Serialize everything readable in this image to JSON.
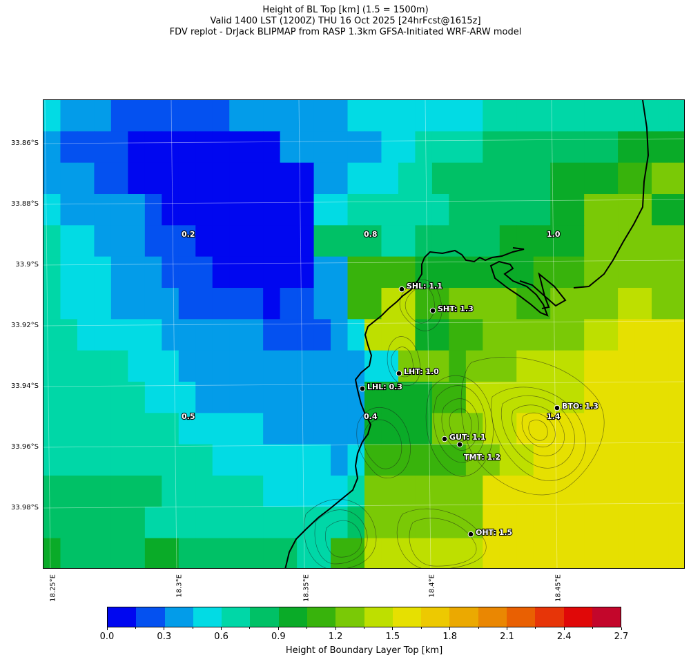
{
  "title": {
    "line1": "Height of BL Top [km] (1.5 = 1500m)",
    "line2": "Valid 1400 LST (1200Z) THU 16 Oct 2025 [24hrFcst@1615z]",
    "line3": "FDV replot - DrJack BLIPMAP from RASP 1.3km GFSA-Initiated WRF-ARW model"
  },
  "lat_labels": [
    "33.86°S",
    "33.88°S",
    "33.9°S",
    "33.92°S",
    "33.94°S",
    "33.96°S",
    "33.98°S"
  ],
  "lon_labels": [
    "18.25°E",
    "18.3°E",
    "18.35°E",
    "18.4°E",
    "18.45°E"
  ],
  "grid_values_km": [
    [
      0.5,
      0.4,
      0.4,
      0.4,
      0.2,
      0.2,
      0.2,
      0.2,
      0.2,
      0.2,
      0.2,
      0.3,
      0.3,
      0.3,
      0.3,
      0.3,
      0.3,
      0.3,
      0.5,
      0.5,
      0.5,
      0.5,
      0.5,
      0.5,
      0.5,
      0.5,
      0.6,
      0.6,
      0.6,
      0.6,
      0.6,
      0.6,
      0.6,
      0.6,
      0.6,
      0.6,
      0.6,
      0.6
    ],
    [
      0.3,
      0.2,
      0.2,
      0.2,
      0.2,
      0.1,
      0.1,
      0.1,
      0.1,
      0.1,
      0.1,
      0.1,
      0.1,
      0.1,
      0.3,
      0.3,
      0.4,
      0.4,
      0.4,
      0.4,
      0.5,
      0.5,
      0.6,
      0.6,
      0.6,
      0.6,
      0.8,
      0.8,
      0.8,
      0.8,
      0.8,
      0.8,
      0.8,
      0.8,
      0.9,
      0.9,
      1.0,
      1.0
    ],
    [
      0.4,
      0.4,
      0.3,
      0.2,
      0.2,
      0.1,
      0.1,
      0.1,
      0.1,
      0.1,
      0.1,
      0.1,
      0.1,
      0.1,
      0.1,
      0.1,
      0.3,
      0.3,
      0.5,
      0.5,
      0.5,
      0.6,
      0.6,
      0.8,
      0.8,
      0.8,
      0.8,
      0.8,
      0.8,
      0.8,
      0.9,
      0.9,
      0.9,
      0.9,
      1.1,
      1.1,
      1.2,
      1.2
    ],
    [
      0.5,
      0.4,
      0.4,
      0.3,
      0.3,
      0.3,
      0.2,
      0.1,
      0.1,
      0.1,
      0.1,
      0.1,
      0.1,
      0.1,
      0.1,
      0.1,
      0.5,
      0.5,
      0.6,
      0.6,
      0.6,
      0.7,
      0.7,
      0.7,
      0.8,
      0.8,
      0.8,
      0.8,
      0.8,
      0.8,
      1.0,
      1.0,
      1.3,
      1.3,
      1.2,
      1.2,
      1.0,
      1.0
    ],
    [
      0.6,
      0.5,
      0.5,
      0.4,
      0.4,
      0.4,
      0.2,
      0.2,
      0.2,
      0.1,
      0.1,
      0.1,
      0.1,
      0.1,
      0.1,
      0.1,
      0.8,
      0.8,
      0.8,
      0.8,
      0.7,
      0.7,
      0.8,
      0.8,
      0.8,
      0.8,
      0.8,
      0.9,
      0.9,
      0.9,
      1.0,
      1.0,
      1.3,
      1.3,
      1.2,
      1.2,
      1.3,
      1.3
    ],
    [
      0.6,
      0.5,
      0.5,
      0.5,
      0.4,
      0.4,
      0.4,
      0.2,
      0.2,
      0.2,
      0.1,
      0.1,
      0.1,
      0.1,
      0.1,
      0.1,
      0.3,
      0.3,
      1.1,
      1.1,
      1.1,
      1.1,
      1.0,
      1.0,
      1.0,
      1.0,
      1.0,
      1.0,
      1.0,
      1.1,
      1.1,
      1.1,
      1.3,
      1.3,
      1.3,
      1.3,
      1.3,
      1.3
    ],
    [
      0.6,
      0.5,
      0.5,
      0.5,
      0.4,
      0.4,
      0.4,
      0.4,
      0.2,
      0.2,
      0.2,
      0.2,
      0.2,
      0.1,
      0.2,
      0.2,
      0.3,
      0.3,
      1.1,
      1.1,
      1.4,
      1.4,
      1.1,
      1.1,
      1.3,
      1.3,
      1.2,
      1.2,
      1.1,
      1.1,
      1.2,
      1.2,
      1.3,
      1.3,
      1.4,
      1.4,
      1.3,
      1.3
    ],
    [
      0.7,
      0.7,
      0.5,
      0.5,
      0.5,
      0.5,
      0.5,
      0.4,
      0.4,
      0.3,
      0.3,
      0.3,
      0.3,
      0.2,
      0.2,
      0.2,
      0.2,
      0.4,
      0.5,
      1.4,
      1.4,
      1.4,
      1.0,
      1.0,
      1.1,
      1.1,
      1.2,
      1.2,
      1.3,
      1.3,
      1.3,
      1.3,
      1.4,
      1.4,
      1.5,
      1.5,
      1.5,
      1.5
    ],
    [
      0.7,
      0.7,
      0.7,
      0.6,
      0.6,
      0.5,
      0.5,
      0.5,
      0.4,
      0.4,
      0.4,
      0.3,
      0.3,
      0.3,
      0.3,
      0.4,
      0.4,
      0.4,
      0.4,
      0.5,
      0.5,
      1.2,
      1.2,
      1.2,
      1.1,
      1.3,
      1.3,
      1.3,
      1.4,
      1.4,
      1.4,
      1.4,
      1.5,
      1.5,
      1.5,
      1.5,
      1.5,
      1.5
    ],
    [
      0.7,
      0.7,
      0.7,
      0.6,
      0.6,
      0.6,
      0.5,
      0.5,
      0.5,
      0.4,
      0.4,
      0.4,
      0.3,
      0.3,
      0.3,
      0.3,
      0.3,
      0.3,
      0.4,
      1.0,
      1.0,
      1.0,
      1.0,
      1.1,
      1.1,
      1.4,
      1.4,
      1.4,
      1.4,
      1.4,
      1.4,
      1.4,
      1.5,
      1.5,
      1.5,
      1.5,
      1.5,
      1.5
    ],
    [
      0.7,
      0.7,
      0.7,
      0.7,
      0.7,
      0.6,
      0.6,
      0.6,
      0.5,
      0.5,
      0.5,
      0.5,
      0.5,
      0.4,
      0.4,
      0.4,
      0.4,
      0.4,
      0.4,
      1.0,
      1.0,
      1.0,
      1.0,
      1.2,
      1.2,
      1.2,
      1.4,
      1.4,
      1.5,
      1.5,
      1.5,
      1.5,
      1.5,
      1.5,
      1.5,
      1.5,
      1.6,
      1.6
    ],
    [
      0.7,
      0.7,
      0.7,
      0.7,
      0.7,
      0.7,
      0.6,
      0.6,
      0.6,
      0.6,
      0.5,
      0.5,
      0.5,
      0.5,
      0.5,
      0.5,
      0.5,
      0.4,
      0.5,
      1.1,
      1.1,
      1.1,
      1.1,
      1.1,
      1.1,
      1.2,
      1.2,
      1.4,
      1.4,
      1.5,
      1.5,
      1.5,
      1.5,
      1.5,
      1.6,
      1.6,
      1.6,
      1.6
    ],
    [
      0.8,
      0.8,
      0.8,
      0.8,
      0.8,
      0.8,
      0.8,
      0.7,
      0.7,
      0.7,
      0.6,
      0.6,
      0.6,
      0.5,
      0.5,
      0.5,
      0.5,
      0.5,
      0.6,
      1.2,
      1.2,
      1.2,
      1.2,
      1.2,
      1.2,
      1.2,
      1.5,
      1.5,
      1.6,
      1.6,
      1.6,
      1.6,
      1.6,
      1.6,
      1.6,
      1.6,
      1.6,
      1.6
    ],
    [
      0.8,
      0.8,
      0.8,
      0.8,
      0.8,
      0.8,
      0.7,
      0.7,
      0.7,
      0.7,
      0.7,
      0.7,
      0.6,
      0.6,
      0.6,
      0.6,
      0.6,
      0.7,
      0.8,
      1.3,
      1.3,
      1.3,
      1.3,
      1.3,
      1.3,
      1.3,
      1.5,
      1.5,
      1.6,
      1.6,
      1.6,
      1.6,
      1.6,
      1.6,
      1.6,
      1.6,
      1.6,
      1.6
    ],
    [
      0.9,
      0.8,
      0.8,
      0.8,
      0.8,
      0.8,
      0.9,
      0.9,
      0.8,
      0.8,
      0.8,
      0.8,
      0.8,
      0.8,
      0.8,
      0.6,
      0.6,
      1.1,
      1.1,
      1.4,
      1.4,
      1.4,
      1.4,
      1.4,
      1.4,
      1.4,
      1.5,
      1.5,
      1.6,
      1.6,
      1.6,
      1.6,
      1.6,
      1.6,
      1.6,
      1.6,
      1.6,
      1.6
    ]
  ],
  "colorbar": {
    "bounds_km": [
      0.0,
      0.15,
      0.3,
      0.45,
      0.6,
      0.75,
      0.9,
      1.05,
      1.2,
      1.35,
      1.5,
      1.65,
      1.8,
      1.95,
      2.1,
      2.25,
      2.4,
      2.55,
      2.7
    ],
    "colors": [
      "#0007f0",
      "#0451f0",
      "#039ce9",
      "#02dbe4",
      "#00d7a7",
      "#00c166",
      "#0aab28",
      "#38b30c",
      "#7ac906",
      "#bedf00",
      "#e6e001",
      "#edc901",
      "#eba901",
      "#ea8702",
      "#e96002",
      "#e73508",
      "#e00808",
      "#c3062b"
    ],
    "tick_labels": [
      "0.0",
      "0.3",
      "0.6",
      "0.9",
      "1.2",
      "1.5",
      "1.8",
      "2.1",
      "2.4",
      "2.7"
    ],
    "label": "Height of Boundary Layer Top [km]"
  },
  "value_labels": [
    {
      "text": "0.2"
    },
    {
      "text": "0.8"
    },
    {
      "text": "1.0"
    },
    {
      "text": "0.5"
    },
    {
      "text": "0.4"
    },
    {
      "text": "1.4"
    }
  ],
  "sites": [
    {
      "label": "SHL: 1.1"
    },
    {
      "label": "SHT: 1.3"
    },
    {
      "label": "LHT: 1.0"
    },
    {
      "label": "LHL: 0.3"
    },
    {
      "label": "GUT: 1.1"
    },
    {
      "label": "TMT: 1.2"
    },
    {
      "label": "BTO: 1.3"
    },
    {
      "label": "OHT: 1.5"
    }
  ]
}
